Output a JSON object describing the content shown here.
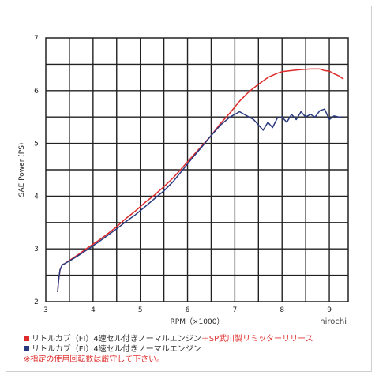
{
  "chart_data": {
    "type": "line",
    "xlabel": "RPM（×1000）",
    "ylabel": "SAE Power (PS)",
    "xlim": [
      3.0,
      9.4
    ],
    "ylim": [
      2,
      7
    ],
    "x_ticks": [
      "3",
      "4",
      "5",
      "6",
      "7",
      "8",
      "9"
    ],
    "y_ticks": [
      "2",
      "3",
      "4",
      "5",
      "6",
      "7"
    ],
    "grid": true,
    "watermark": "hirochi",
    "series": [
      {
        "color": "#dd2a2a",
        "x": [
          3.25,
          3.27,
          3.3,
          3.35,
          3.4,
          3.5,
          3.7,
          3.9,
          4.1,
          4.3,
          4.5,
          4.7,
          4.9,
          5.1,
          5.3,
          5.5,
          5.7,
          5.9,
          6.1,
          6.3,
          6.5,
          6.7,
          6.9,
          7.1,
          7.3,
          7.5,
          7.7,
          7.9,
          8.0,
          8.2,
          8.4,
          8.6,
          8.8,
          8.9,
          9.0,
          9.1,
          9.2,
          9.3
        ],
        "y": [
          2.18,
          2.4,
          2.6,
          2.7,
          2.72,
          2.78,
          2.9,
          3.03,
          3.15,
          3.28,
          3.42,
          3.58,
          3.72,
          3.88,
          4.02,
          4.18,
          4.35,
          4.55,
          4.75,
          4.95,
          5.15,
          5.38,
          5.58,
          5.8,
          5.98,
          6.12,
          6.25,
          6.33,
          6.36,
          6.38,
          6.4,
          6.41,
          6.41,
          6.38,
          6.37,
          6.32,
          6.28,
          6.22
        ]
      },
      {
        "color": "#2a3a80",
        "x": [
          3.25,
          3.27,
          3.3,
          3.35,
          3.4,
          3.5,
          3.7,
          3.9,
          4.1,
          4.3,
          4.5,
          4.7,
          4.9,
          5.1,
          5.3,
          5.5,
          5.7,
          5.9,
          6.1,
          6.3,
          6.5,
          6.7,
          6.9,
          7.0,
          7.1,
          7.2,
          7.3,
          7.4,
          7.5,
          7.6,
          7.7,
          7.8,
          7.9,
          8.0,
          8.1,
          8.2,
          8.3,
          8.4,
          8.5,
          8.6,
          8.7,
          8.8,
          8.9,
          9.0,
          9.1,
          9.2,
          9.3
        ],
        "y": [
          2.18,
          2.4,
          2.6,
          2.7,
          2.72,
          2.77,
          2.88,
          3.0,
          3.12,
          3.25,
          3.38,
          3.52,
          3.65,
          3.8,
          3.95,
          4.1,
          4.28,
          4.5,
          4.72,
          4.93,
          5.15,
          5.35,
          5.5,
          5.55,
          5.6,
          5.55,
          5.5,
          5.45,
          5.35,
          5.25,
          5.4,
          5.3,
          5.48,
          5.5,
          5.4,
          5.55,
          5.45,
          5.6,
          5.5,
          5.55,
          5.5,
          5.62,
          5.65,
          5.45,
          5.52,
          5.5,
          5.48
        ]
      }
    ]
  },
  "legend": {
    "red_label": "リトルカブ（FI）4速セル付きノーマルエンジン",
    "red_label_highlight": "＋SP武川製リミッターリリース",
    "blue_label": "リトルカブ（FI）4速セル付きノーマルエンジン",
    "note": "※指定の使用回転数は厳守して下さい。",
    "red_swatch": "#dd2a2a",
    "blue_swatch": "#2a3a80"
  }
}
